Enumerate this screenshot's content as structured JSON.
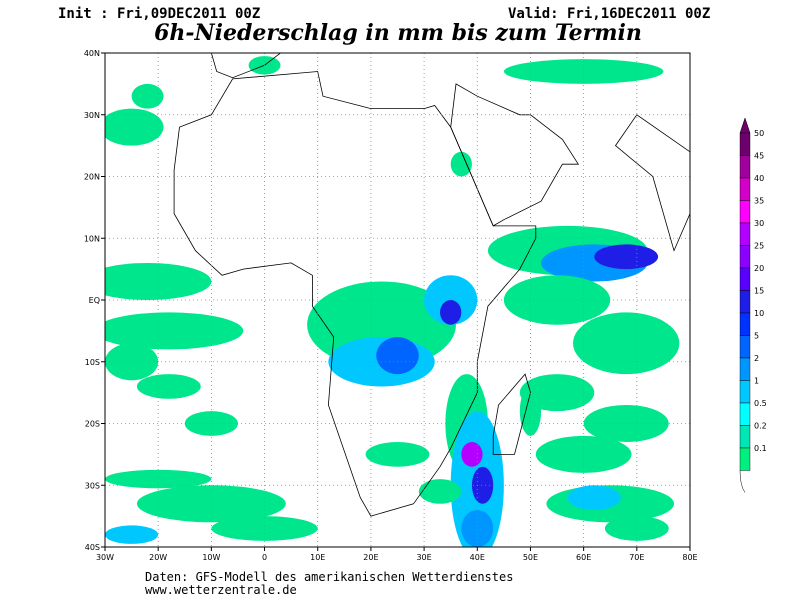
{
  "header": {
    "init": "Init : Fri,09DEC2011 00Z",
    "valid": "Valid: Fri,16DEC2011 00Z",
    "title": "6h-Niederschlag in mm bis zum Termin"
  },
  "map": {
    "lat_labels": [
      "40N",
      "30N",
      "20N",
      "10N",
      "EQ",
      "10S",
      "20S",
      "30S",
      "40S"
    ],
    "lon_labels": [
      "30W",
      "20W",
      "10W",
      "0",
      "10E",
      "20E",
      "30E",
      "40E",
      "50E",
      "60E",
      "70E",
      "80E"
    ]
  },
  "legend": {
    "labels": [
      "50",
      "45",
      "40",
      "35",
      "30",
      "25",
      "20",
      "15",
      "10",
      "5",
      "2",
      "1",
      "0.5",
      "0.2",
      "0.1"
    ]
  },
  "footer": {
    "source": "Daten: GFS-Modell des amerikanischen Wetterdienstes",
    "url": "www.wetterzentrale.de"
  }
}
